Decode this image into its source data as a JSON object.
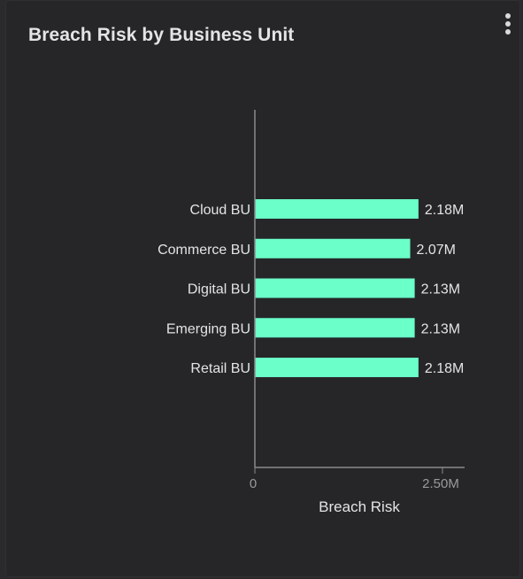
{
  "card": {
    "title": "Breach Risk by Business Unit",
    "menu_icon": "more-vertical-icon"
  },
  "chart_data": {
    "type": "bar",
    "orientation": "horizontal",
    "categories": [
      "Cloud BU",
      "Commerce BU",
      "Digital BU",
      "Emerging BU",
      "Retail BU"
    ],
    "values": [
      2180000,
      2070000,
      2130000,
      2130000,
      2180000
    ],
    "value_labels": [
      "2.18M",
      "2.07M",
      "2.13M",
      "2.13M",
      "2.18M"
    ],
    "xlabel": "Breach Risk",
    "xlim": [
      0,
      2500000
    ],
    "x_tick_labels": [
      "0",
      "2.50M"
    ],
    "grid": false,
    "legend": "none",
    "bar_color": "#6bffc9"
  }
}
